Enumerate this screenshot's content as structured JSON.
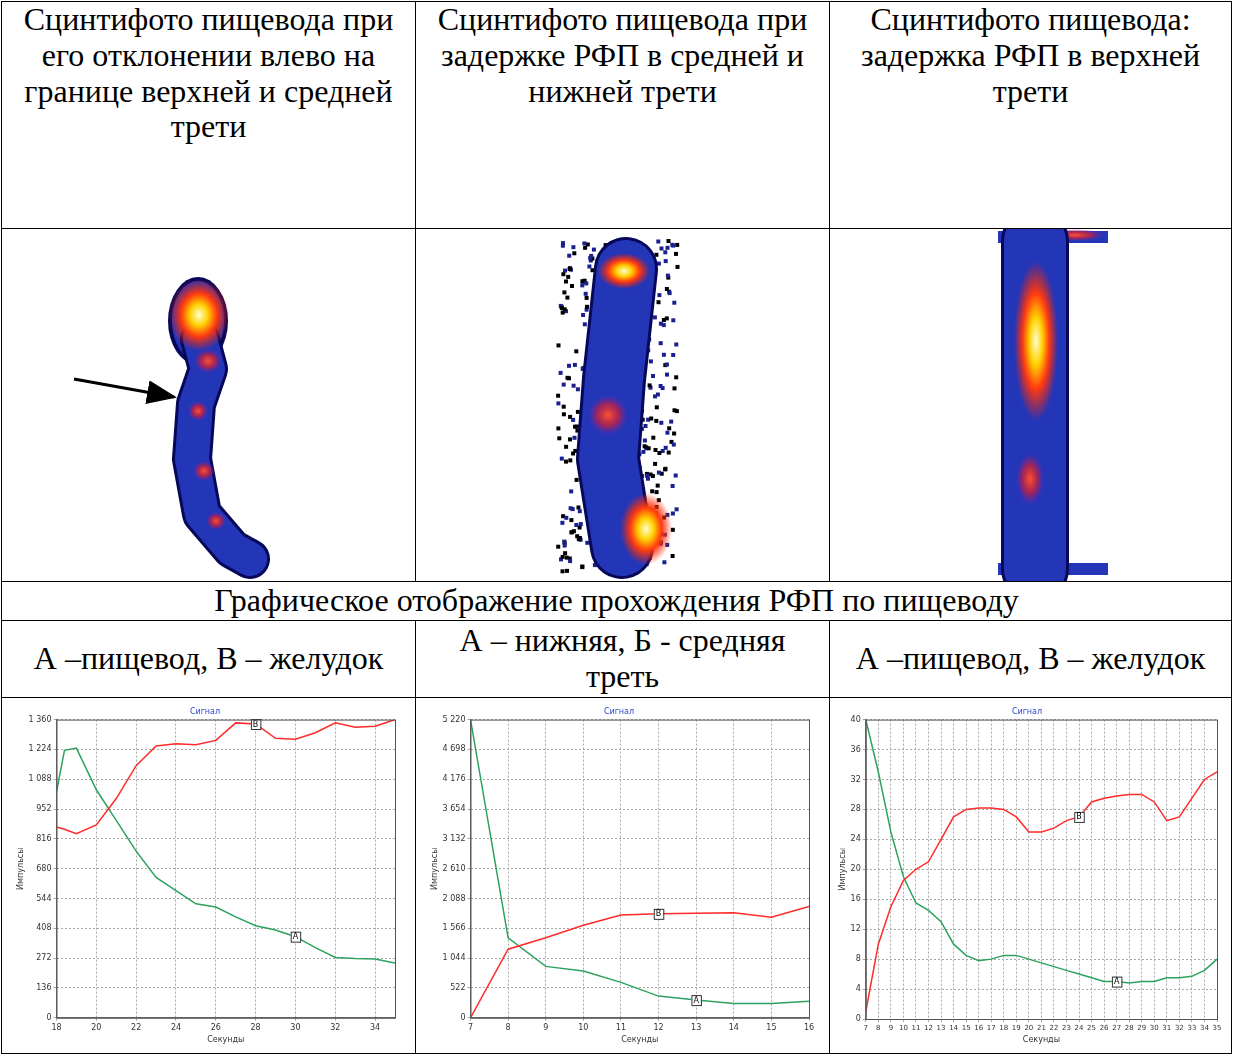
{
  "headers": [
    "Сцинтифото пищевода при его отклонении влево на границе верхней и средней трети",
    "Сцинтифото пищевода при задержке РФП в средней и нижней трети",
    "Сцинтифото пищевода: задержка РФП в верхней  трети"
  ],
  "section_title": "Графическое отображение прохождения РФП по пищеводу",
  "chart_captions": [
    "А –пищевод, В – желудок",
    "А – нижняя, Б - средняя треть",
    "А –пищевод, В – желудок"
  ],
  "chart_data": [
    {
      "type": "line",
      "title": "Сигнал",
      "x_label": "Секунды",
      "y_label": "Импульсы",
      "grid": true,
      "x": [
        18,
        18.4,
        19,
        20,
        21,
        22,
        23,
        24,
        25,
        26,
        27,
        28,
        29,
        30,
        31,
        32,
        33,
        34,
        35
      ],
      "series": [
        {
          "name": "В",
          "color": "#ff2a2a",
          "values": [
            870,
            860,
            840,
            880,
            1000,
            1150,
            1240,
            1250,
            1245,
            1265,
            1345,
            1340,
            1275,
            1270,
            1300,
            1345,
            1325,
            1330,
            1360
          ]
        },
        {
          "name": "А",
          "color": "#2ca25f",
          "values": [
            1030,
            1220,
            1230,
            1040,
            900,
            760,
            640,
            580,
            520,
            505,
            460,
            420,
            400,
            370,
            320,
            275,
            270,
            268,
            250
          ]
        }
      ],
      "xlim": [
        18,
        35
      ],
      "xticks": [
        18,
        20,
        22,
        24,
        26,
        28,
        30,
        32,
        34
      ],
      "ylim": [
        0,
        1360
      ],
      "yticks": [
        0,
        136,
        272,
        408,
        544,
        680,
        816,
        952,
        {
          "value": 1088,
          "label": "1 088"
        },
        {
          "value": 1224,
          "label": "1 224"
        },
        {
          "value": 1360,
          "label": "1 360"
        }
      ]
    },
    {
      "type": "line",
      "title": "Сигнал",
      "x_label": "Секунды",
      "y_label": "Импульсы",
      "grid": true,
      "x": [
        7,
        8,
        9,
        10,
        11,
        12,
        13,
        14,
        15,
        16
      ],
      "series": [
        {
          "name": "В",
          "color": "#ff2a2a",
          "values": [
            0,
            1200,
            1400,
            1620,
            1800,
            1820,
            1830,
            1840,
            1760,
            1950
          ]
        },
        {
          "name": "А",
          "color": "#2ca25f",
          "values": [
            5220,
            1400,
            900,
            820,
            620,
            380,
            310,
            250,
            250,
            290
          ]
        }
      ],
      "xlim": [
        7,
        16
      ],
      "xticks": [
        7,
        8,
        9,
        10,
        11,
        12,
        13,
        14,
        15,
        16
      ],
      "ylim": [
        0,
        5220
      ],
      "yticks": [
        0,
        522,
        {
          "value": 1044,
          "label": "1 044"
        },
        {
          "value": 1566,
          "label": "1 566"
        },
        {
          "value": 2088,
          "label": "2 088"
        },
        {
          "value": 2610,
          "label": "2 610"
        },
        {
          "value": 3132,
          "label": "3 132"
        },
        {
          "value": 3654,
          "label": "3 654"
        },
        {
          "value": 4176,
          "label": "4 176"
        },
        {
          "value": 4698,
          "label": "4 698"
        },
        {
          "value": 5220,
          "label": "5 220"
        }
      ]
    },
    {
      "type": "line",
      "title": "Сигнал",
      "x_label": "Секунды",
      "y_label": "Импульсы",
      "grid": true,
      "x": [
        7,
        8,
        9,
        10,
        11,
        12,
        13,
        14,
        15,
        16,
        17,
        18,
        19,
        20,
        21,
        22,
        23,
        24,
        25,
        26,
        27,
        28,
        29,
        30,
        31,
        32,
        33,
        34,
        35
      ],
      "series": [
        {
          "name": "В",
          "color": "#ff2a2a",
          "values": [
            1,
            10,
            15,
            18.5,
            20,
            21,
            24,
            27,
            28,
            28.2,
            28.2,
            28,
            27,
            25,
            25,
            25.5,
            26.5,
            27,
            29,
            29.5,
            29.8,
            30,
            30,
            29,
            26.5,
            27,
            29.5,
            32,
            33
          ]
        },
        {
          "name": "А",
          "color": "#2ca25f",
          "values": [
            40,
            33,
            25,
            19,
            15.5,
            14.5,
            13,
            10,
            8.5,
            7.8,
            8,
            8.5,
            8.5,
            8,
            7.5,
            7,
            6.5,
            6,
            5.5,
            5,
            5,
            4.8,
            5,
            5,
            5.5,
            5.5,
            5.7,
            6.5,
            8
          ]
        }
      ],
      "xlim": [
        7,
        35
      ],
      "xticks": [
        7,
        8,
        9,
        10,
        11,
        12,
        13,
        14,
        15,
        16,
        17,
        18,
        19,
        20,
        21,
        22,
        23,
        24,
        25,
        26,
        27,
        28,
        29,
        30,
        31,
        32,
        33,
        34,
        35
      ],
      "ylim": [
        0,
        40
      ],
      "yticks": [
        0,
        4,
        8,
        12,
        16,
        20,
        24,
        28,
        32,
        36,
        40
      ]
    }
  ]
}
